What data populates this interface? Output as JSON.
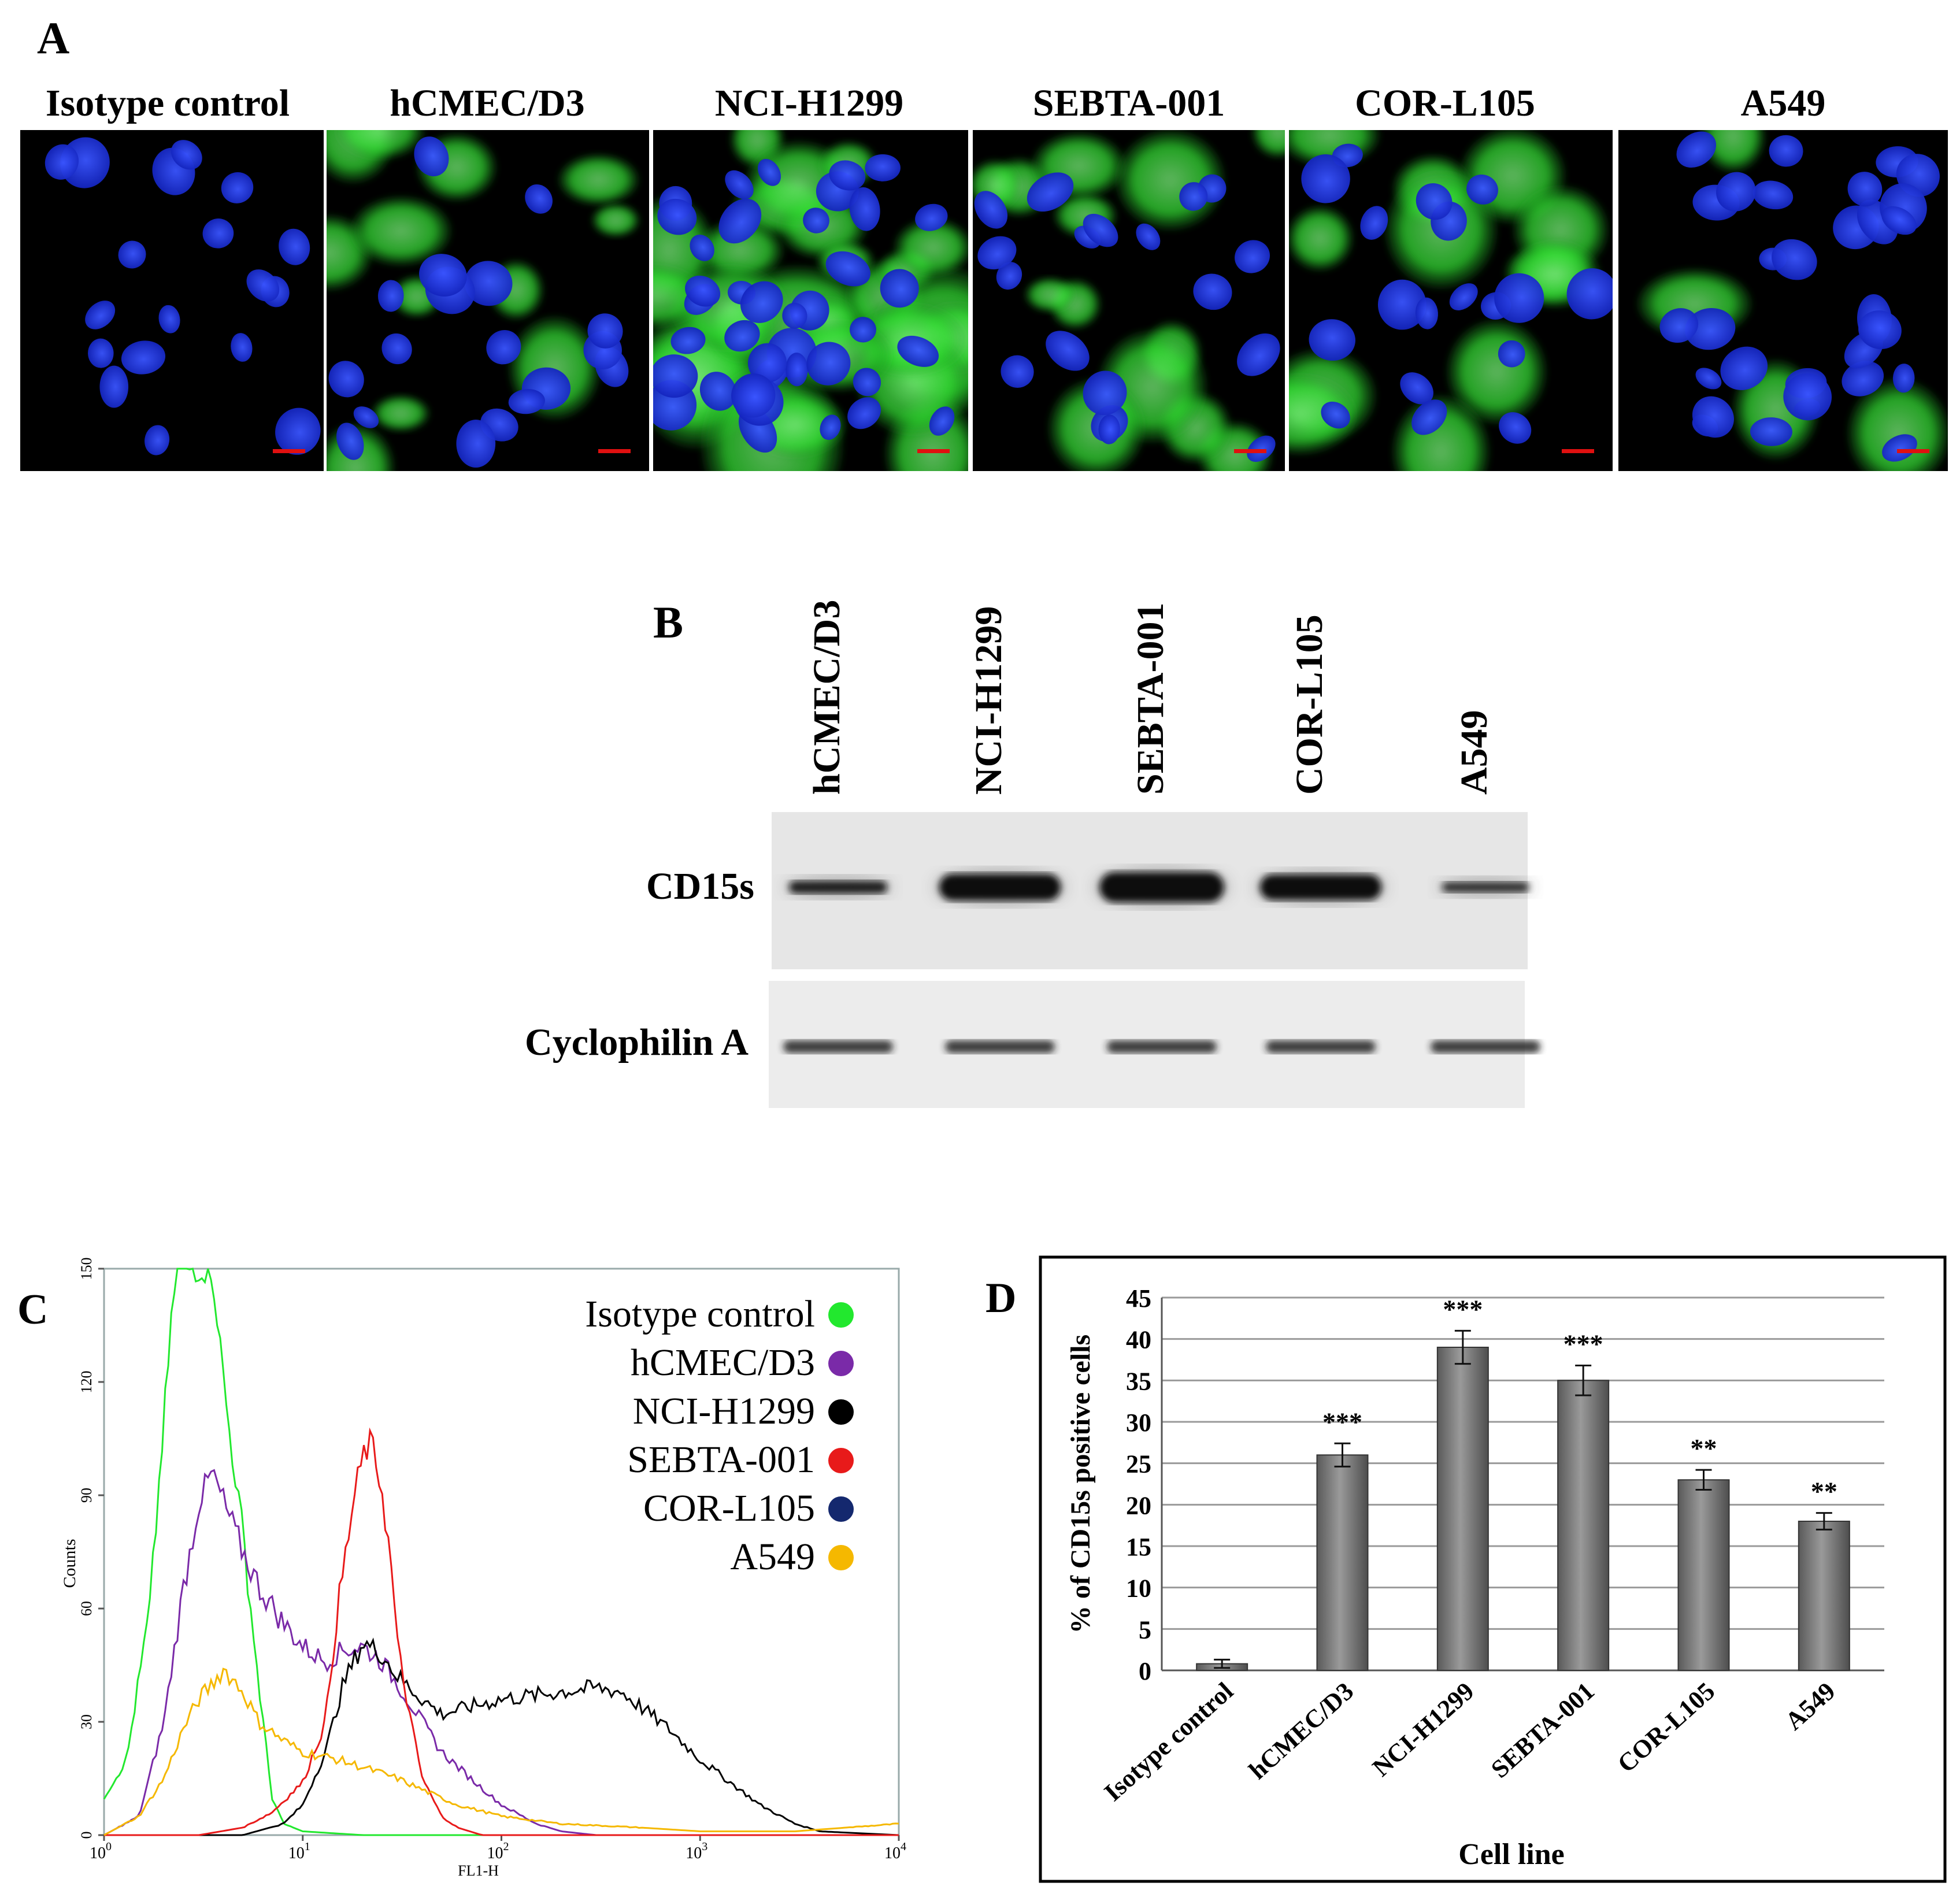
{
  "panel_a": {
    "letter": "A",
    "labels": [
      "Isotype control",
      "hCMEC/D3",
      "NCI-H1299",
      "SEBTA-001",
      "COR-L105",
      "A549"
    ],
    "colors": {
      "nucleus": "#1a2fd8",
      "stain": "#2fd82f",
      "scale_bar": "#e01010"
    }
  },
  "panel_b": {
    "letter": "B",
    "lanes": [
      "hCMEC/D3",
      "NCI-H1299",
      "SEBTA-001",
      "COR-L105",
      "A549"
    ],
    "rows": [
      "CD15s",
      "Cyclophilin A"
    ]
  },
  "panel_c": {
    "letter": "C",
    "xlabel": "FL1-H",
    "ylabel": "Counts",
    "yticks": [
      "0",
      "30",
      "60",
      "90",
      "120",
      "150"
    ],
    "xticks": [
      {
        "base": "10",
        "exp": "0"
      },
      {
        "base": "10",
        "exp": "1"
      },
      {
        "base": "10",
        "exp": "2"
      },
      {
        "base": "10",
        "exp": "3"
      },
      {
        "base": "10",
        "exp": "4"
      }
    ],
    "legend": [
      {
        "name": "Isotype control",
        "color": "#22e82e"
      },
      {
        "name": "hCMEC/D3",
        "color": "#7a2aa8"
      },
      {
        "name": "NCI-H1299",
        "color": "#000000"
      },
      {
        "name": "SEBTA-001",
        "color": "#e81a1a"
      },
      {
        "name": "COR-L105",
        "color": "#14286e"
      },
      {
        "name": "A549",
        "color": "#f5b800"
      }
    ]
  },
  "panel_d": {
    "letter": "D",
    "xlabel": "Cell line",
    "ylabel": "% of CD15s positive cells",
    "yticks": [
      "0",
      "5",
      "10",
      "15",
      "20",
      "25",
      "30",
      "35",
      "40",
      "45"
    ]
  },
  "chart_data": [
    {
      "type": "line",
      "xscale": "log",
      "xlim": [
        1,
        10000
      ],
      "ylim": [
        0,
        150
      ],
      "xlabel": "FL1-H",
      "ylabel": "Counts",
      "series": [
        {
          "name": "Isotype control",
          "color": "#22e82e",
          "x": [
            1,
            1.3,
            1.7,
            2,
            2.3,
            2.8,
            3.5,
            4.2,
            5,
            6,
            7,
            8,
            10,
            20,
            100,
            10000
          ],
          "y": [
            10,
            20,
            60,
            110,
            150,
            150,
            150,
            110,
            80,
            40,
            10,
            3,
            1,
            0,
            0,
            0
          ]
        },
        {
          "name": "hCMEC/D3",
          "color": "#7a2aa8",
          "x": [
            1,
            1.5,
            2,
            2.5,
            3,
            3.5,
            4,
            5,
            6,
            8,
            10,
            13,
            16,
            20,
            25,
            30,
            40,
            50,
            70,
            100,
            150,
            200,
            300,
            10000
          ],
          "y": [
            0,
            5,
            30,
            65,
            88,
            96,
            88,
            75,
            66,
            56,
            50,
            46,
            49,
            50,
            46,
            40,
            30,
            22,
            15,
            8,
            3,
            1,
            0,
            0
          ]
        },
        {
          "name": "NCI-H1299",
          "color": "#000000",
          "x": [
            1,
            5,
            8,
            10,
            13,
            16,
            20,
            25,
            30,
            40,
            50,
            70,
            100,
            150,
            200,
            300,
            400,
            500,
            700,
            1000,
            1500,
            2000,
            3000,
            4000,
            10000
          ],
          "y": [
            0,
            0,
            3,
            8,
            22,
            40,
            51,
            48,
            42,
            36,
            32,
            34,
            36,
            37,
            38,
            39,
            38,
            34,
            28,
            20,
            13,
            8,
            3,
            1,
            0
          ]
        },
        {
          "name": "SEBTA-001",
          "color": "#e81a1a",
          "x": [
            1,
            3,
            5,
            7,
            10,
            13,
            15,
            18,
            20,
            22,
            25,
            28,
            30,
            35,
            40,
            50,
            60,
            80,
            100,
            10000
          ],
          "y": [
            0,
            0,
            2,
            6,
            14,
            30,
            60,
            88,
            100,
            104,
            92,
            70,
            50,
            30,
            15,
            5,
            2,
            0,
            0,
            0
          ]
        },
        {
          "name": "A549",
          "color": "#f5b800",
          "x": [
            1,
            1.5,
            2,
            2.5,
            3,
            3.5,
            4,
            5,
            6,
            8,
            10,
            15,
            20,
            30,
            40,
            60,
            100,
            200,
            500,
            1000,
            3000,
            10000
          ],
          "y": [
            0,
            5,
            15,
            28,
            36,
            40,
            44,
            38,
            30,
            25,
            22,
            20,
            18,
            15,
            12,
            8,
            5,
            3,
            2,
            1,
            1,
            3
          ]
        }
      ]
    },
    {
      "type": "bar",
      "categories": [
        "Isotype control",
        "hCMEC/D3",
        "NCI-H1299",
        "SEBTA-001",
        "COR-L105",
        "A549"
      ],
      "values": [
        0.8,
        26,
        39,
        35,
        23,
        18
      ],
      "errors": [
        0.5,
        1.4,
        2.0,
        1.8,
        1.2,
        1.0
      ],
      "significance": [
        "",
        "***",
        "***",
        "***",
        "**",
        "**"
      ],
      "xlabel": "Cell line",
      "ylabel": "% of CD15s positive cells",
      "ylim": [
        0,
        45
      ],
      "grid": true
    }
  ]
}
